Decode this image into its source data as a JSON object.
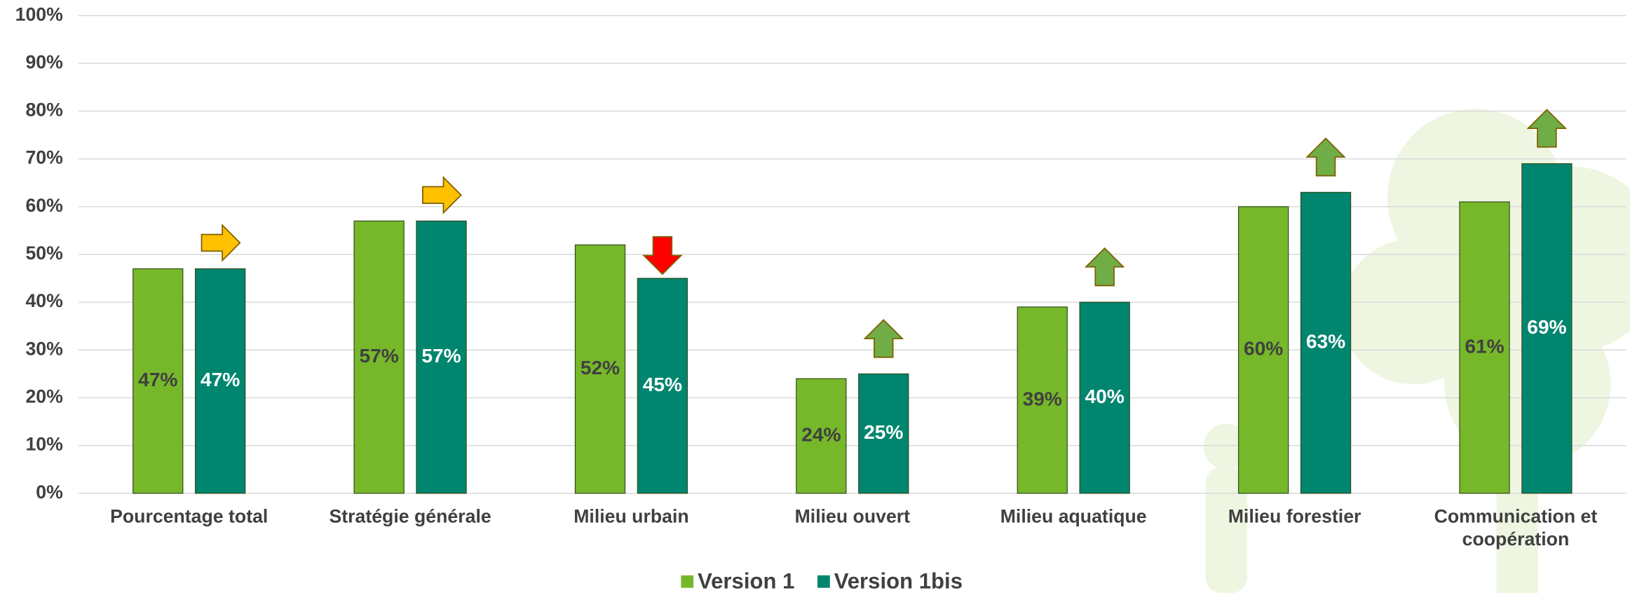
{
  "chart_data": {
    "type": "bar",
    "categories": [
      "Pourcentage total",
      "Stratégie générale",
      "Milieu urbain",
      "Milieu ouvert",
      "Milieu aquatique",
      "Milieu forestier",
      "Communication et coopération"
    ],
    "series": [
      {
        "name": "Version 1",
        "color": "#76b82a",
        "values": [
          47,
          57,
          52,
          24,
          39,
          60,
          61
        ],
        "value_labels": [
          "47%",
          "57%",
          "52%",
          "24%",
          "39%",
          "60%",
          "61%"
        ]
      },
      {
        "name": "Version 1bis",
        "color": "#00856f",
        "values": [
          47,
          57,
          45,
          25,
          40,
          63,
          69
        ],
        "value_labels": [
          "47%",
          "57%",
          "45%",
          "25%",
          "40%",
          "63%",
          "69%"
        ]
      }
    ],
    "ylim": [
      0,
      100
    ],
    "yticks": [
      {
        "value": 0,
        "label": "0%"
      },
      {
        "value": 10,
        "label": "10%"
      },
      {
        "value": 20,
        "label": "20%"
      },
      {
        "value": 30,
        "label": "30%"
      },
      {
        "value": 40,
        "label": "40%"
      },
      {
        "value": 50,
        "label": "50%"
      },
      {
        "value": 60,
        "label": "60%"
      },
      {
        "value": 70,
        "label": "70%"
      },
      {
        "value": 80,
        "label": "80%"
      },
      {
        "value": 90,
        "label": "90%"
      },
      {
        "value": 100,
        "label": "100%"
      }
    ],
    "grid": true,
    "legend": "bottom"
  }
}
